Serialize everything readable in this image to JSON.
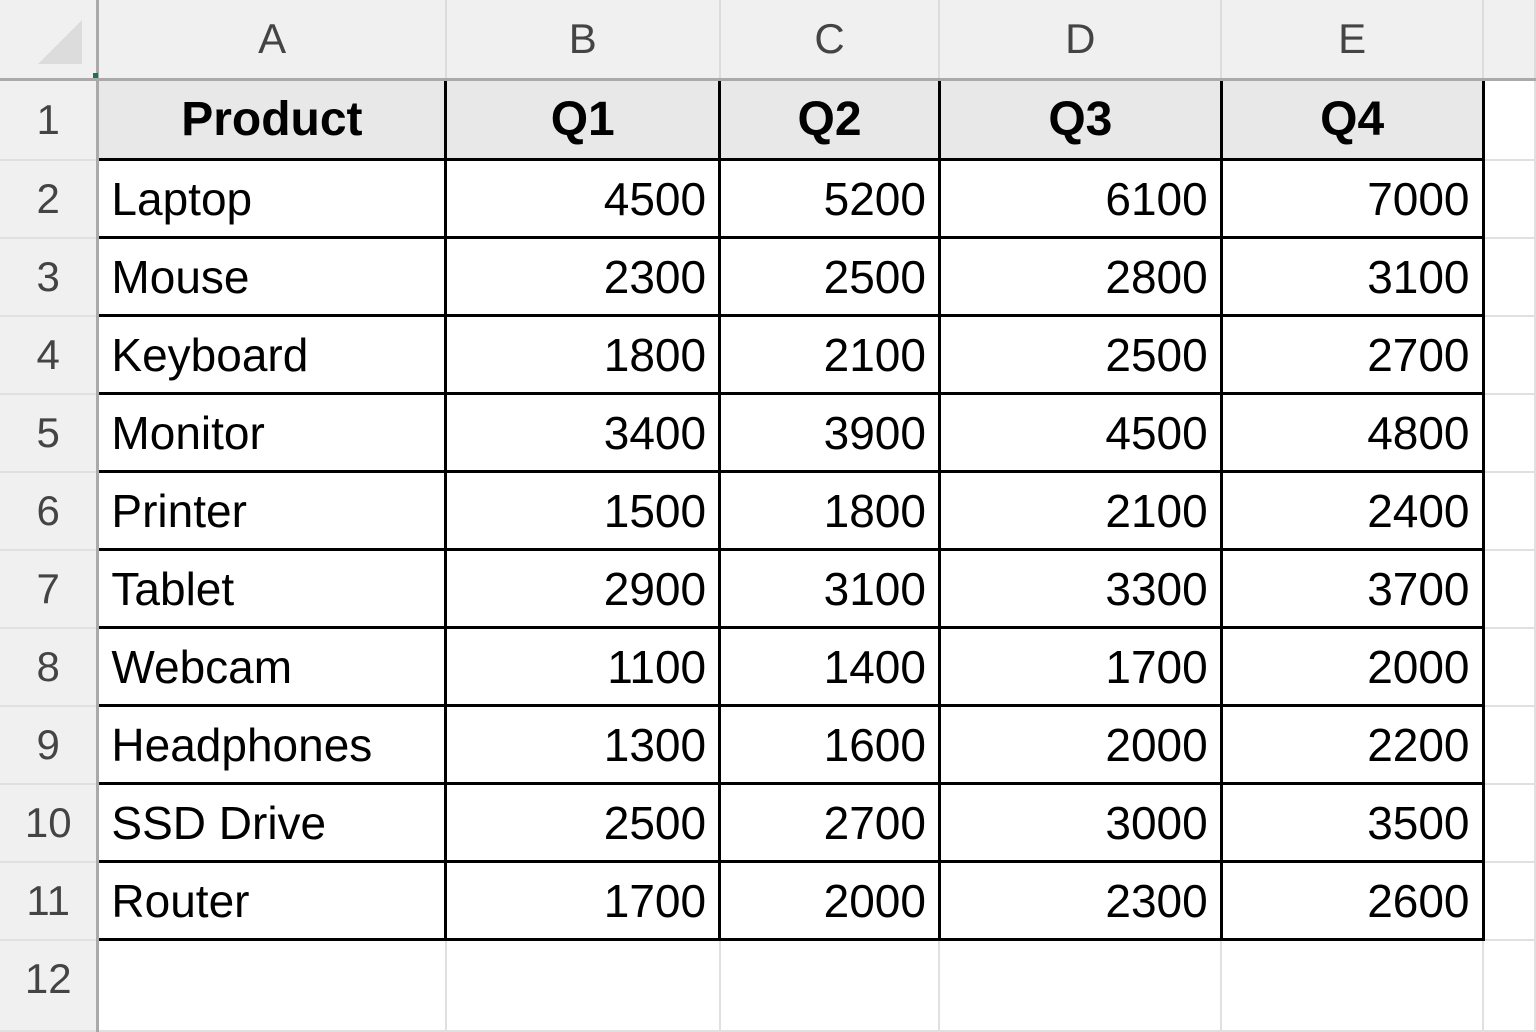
{
  "columns": [
    "A",
    "B",
    "C",
    "D",
    "E"
  ],
  "headers": [
    "Product",
    "Q1",
    "Q2",
    "Q3",
    "Q4"
  ],
  "rows": [
    {
      "num": "2",
      "product": "Laptop",
      "q": [
        "4500",
        "5200",
        "6100",
        "7000"
      ]
    },
    {
      "num": "3",
      "product": "Mouse",
      "q": [
        "2300",
        "2500",
        "2800",
        "3100"
      ]
    },
    {
      "num": "4",
      "product": "Keyboard",
      "q": [
        "1800",
        "2100",
        "2500",
        "2700"
      ]
    },
    {
      "num": "5",
      "product": "Monitor",
      "q": [
        "3400",
        "3900",
        "4500",
        "4800"
      ]
    },
    {
      "num": "6",
      "product": "Printer",
      "q": [
        "1500",
        "1800",
        "2100",
        "2400"
      ]
    },
    {
      "num": "7",
      "product": "Tablet",
      "q": [
        "2900",
        "3100",
        "3300",
        "3700"
      ]
    },
    {
      "num": "8",
      "product": "Webcam",
      "q": [
        "1100",
        "1400",
        "1700",
        "2000"
      ]
    },
    {
      "num": "9",
      "product": "Headphones",
      "q": [
        "1300",
        "1600",
        "2000",
        "2200"
      ]
    },
    {
      "num": "10",
      "product": "SSD Drive",
      "q": [
        "2500",
        "2700",
        "3000",
        "3500"
      ]
    },
    {
      "num": "11",
      "product": "Router",
      "q": [
        "1700",
        "2000",
        "2300",
        "2600"
      ]
    }
  ],
  "header_row_num": "1",
  "last_row_num": "12"
}
